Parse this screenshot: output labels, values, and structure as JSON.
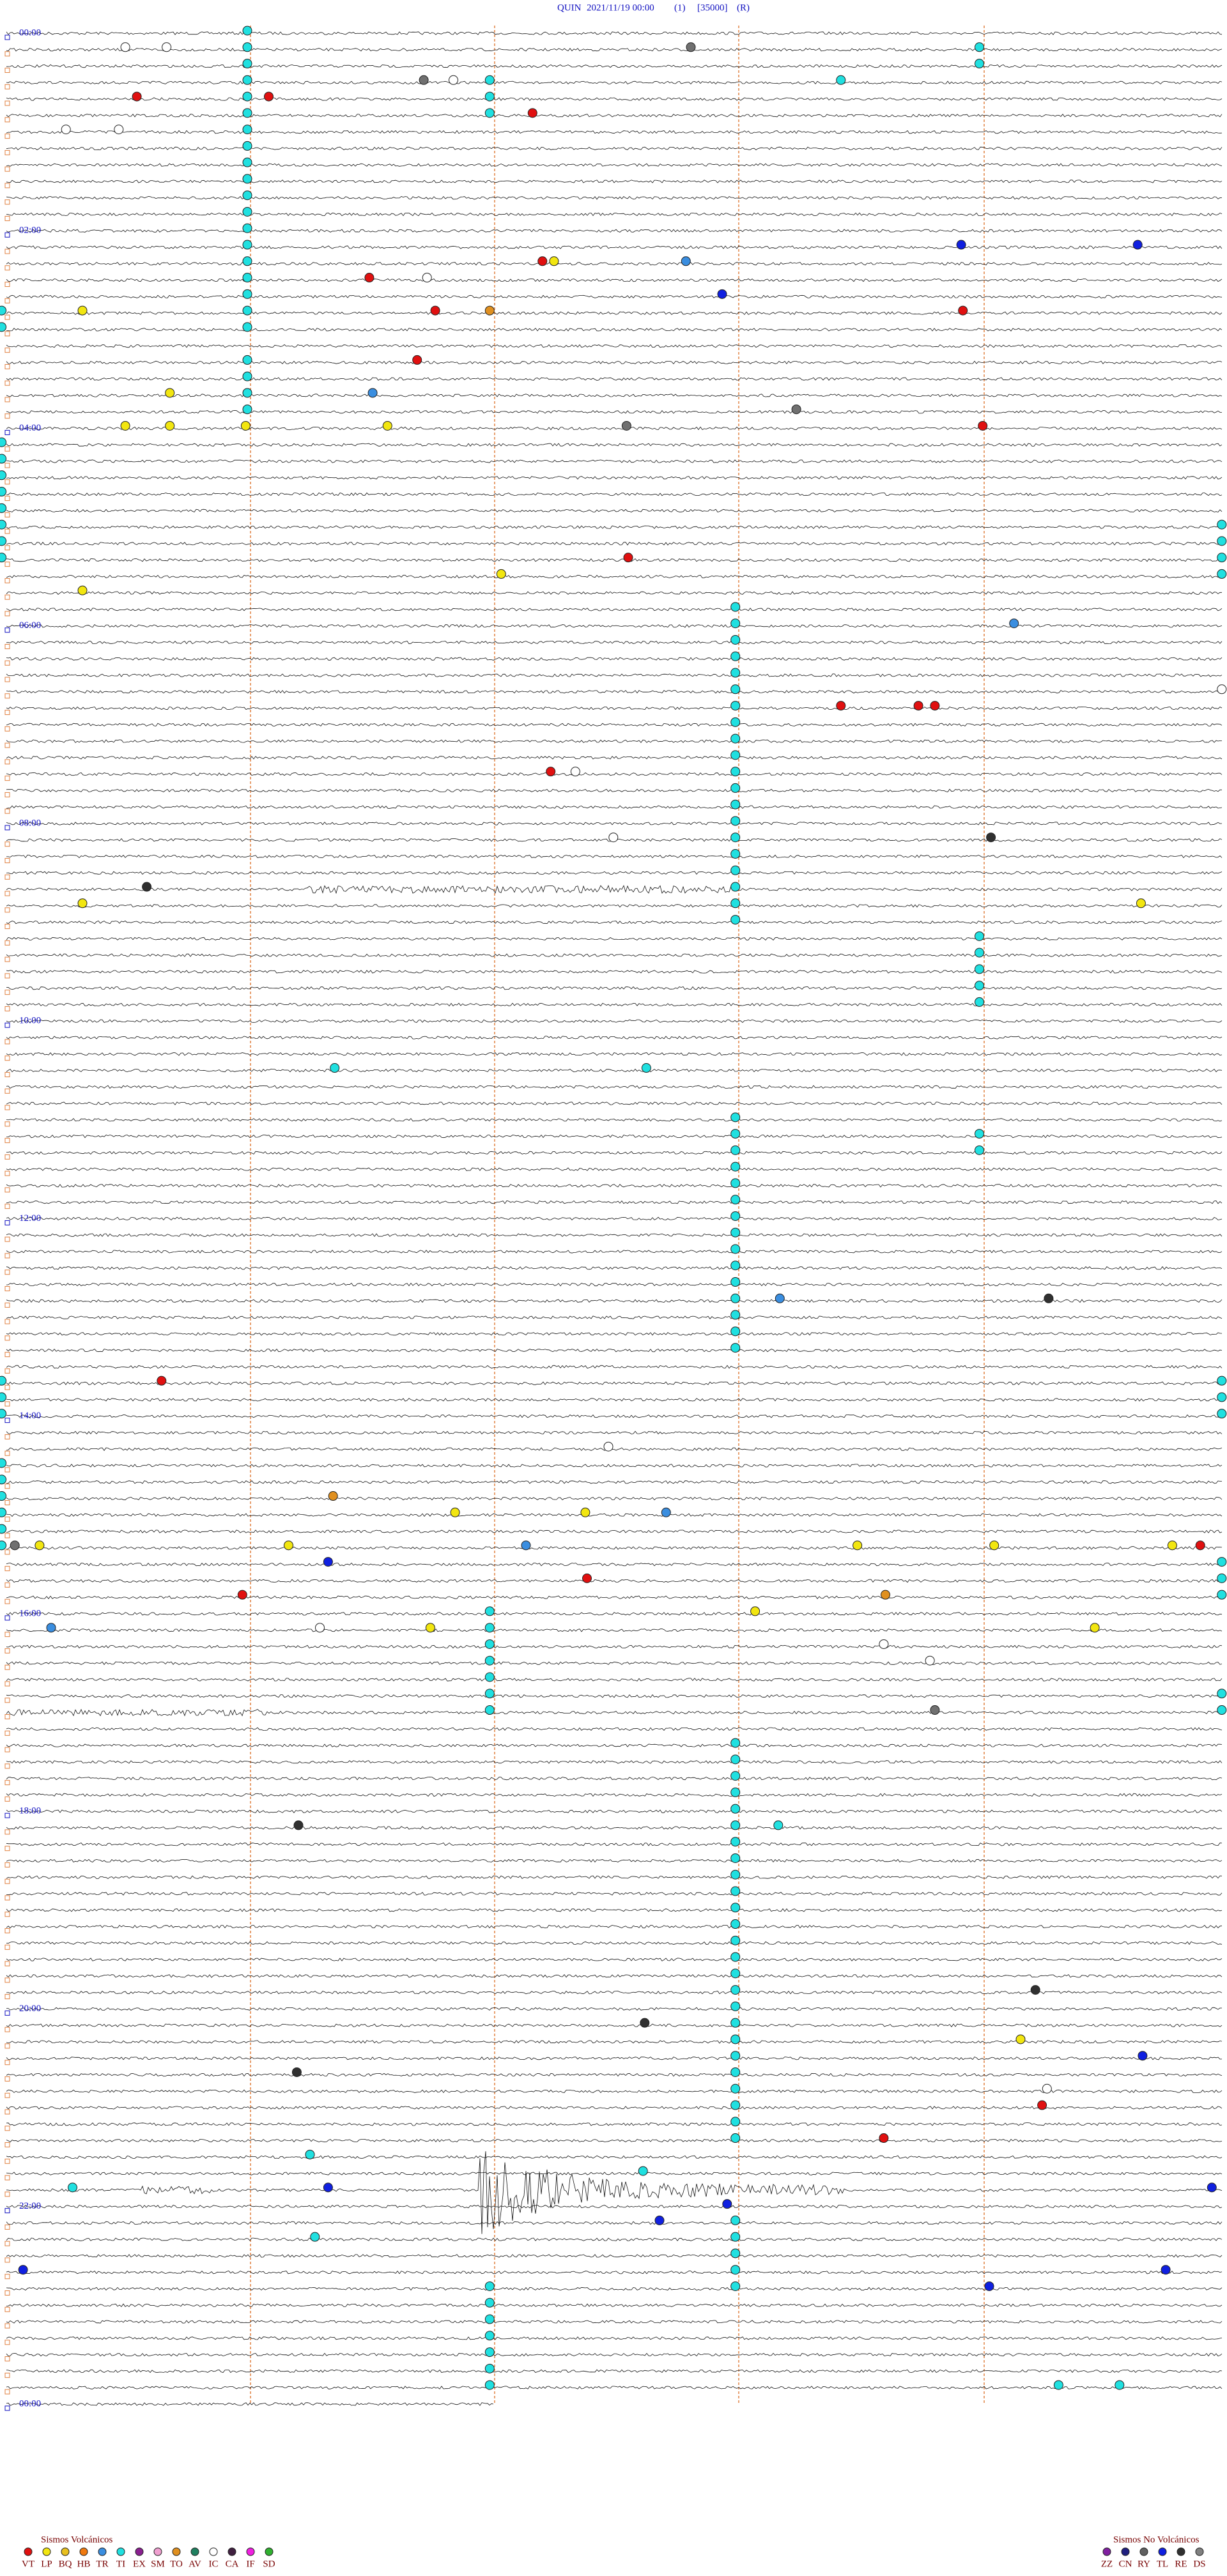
{
  "header": {
    "station": "QUIN",
    "datetime": "2021/11/19 00:00",
    "channel": "(1)",
    "scale": "[35000]",
    "mode": "(R)"
  },
  "hour_labels": [
    "00:00",
    "02:00",
    "04:00",
    "06:00",
    "08:00",
    "10:00",
    "12:00",
    "14:00",
    "16:00",
    "18:00",
    "20:00",
    "22:00",
    "00:00"
  ],
  "legend": {
    "volcanic": {
      "title": "Sismos Volcánicos",
      "items": [
        {
          "code": "VT",
          "color": "#e01010"
        },
        {
          "code": "LP",
          "color": "#f2e610"
        },
        {
          "code": "BQ",
          "color": "#e8c020"
        },
        {
          "code": "HB",
          "color": "#f07a10"
        },
        {
          "code": "TR",
          "color": "#3a8ee0"
        },
        {
          "code": "TI",
          "color": "#20e0e0"
        },
        {
          "code": "EX",
          "color": "#8a2090"
        },
        {
          "code": "SM",
          "color": "#f0a0d0"
        },
        {
          "code": "TO",
          "color": "#e09020"
        },
        {
          "code": "AV",
          "color": "#208060"
        },
        {
          "code": "IC",
          "color": "#ffffff"
        },
        {
          "code": "CA",
          "color": "#402040"
        },
        {
          "code": "IF",
          "color": "#f020e0"
        },
        {
          "code": "SD",
          "color": "#30b030"
        }
      ]
    },
    "non_volcanic": {
      "title": "Sismos No Volcánicos",
      "items": [
        {
          "code": "ZZ",
          "color": "#8020a0"
        },
        {
          "code": "CN",
          "color": "#202080"
        },
        {
          "code": "RY",
          "color": "#606060"
        },
        {
          "code": "TL",
          "color": "#1020e0"
        },
        {
          "code": "RE",
          "color": "#303030"
        },
        {
          "code": "DS",
          "color": "#808080"
        }
      ]
    }
  }
}
